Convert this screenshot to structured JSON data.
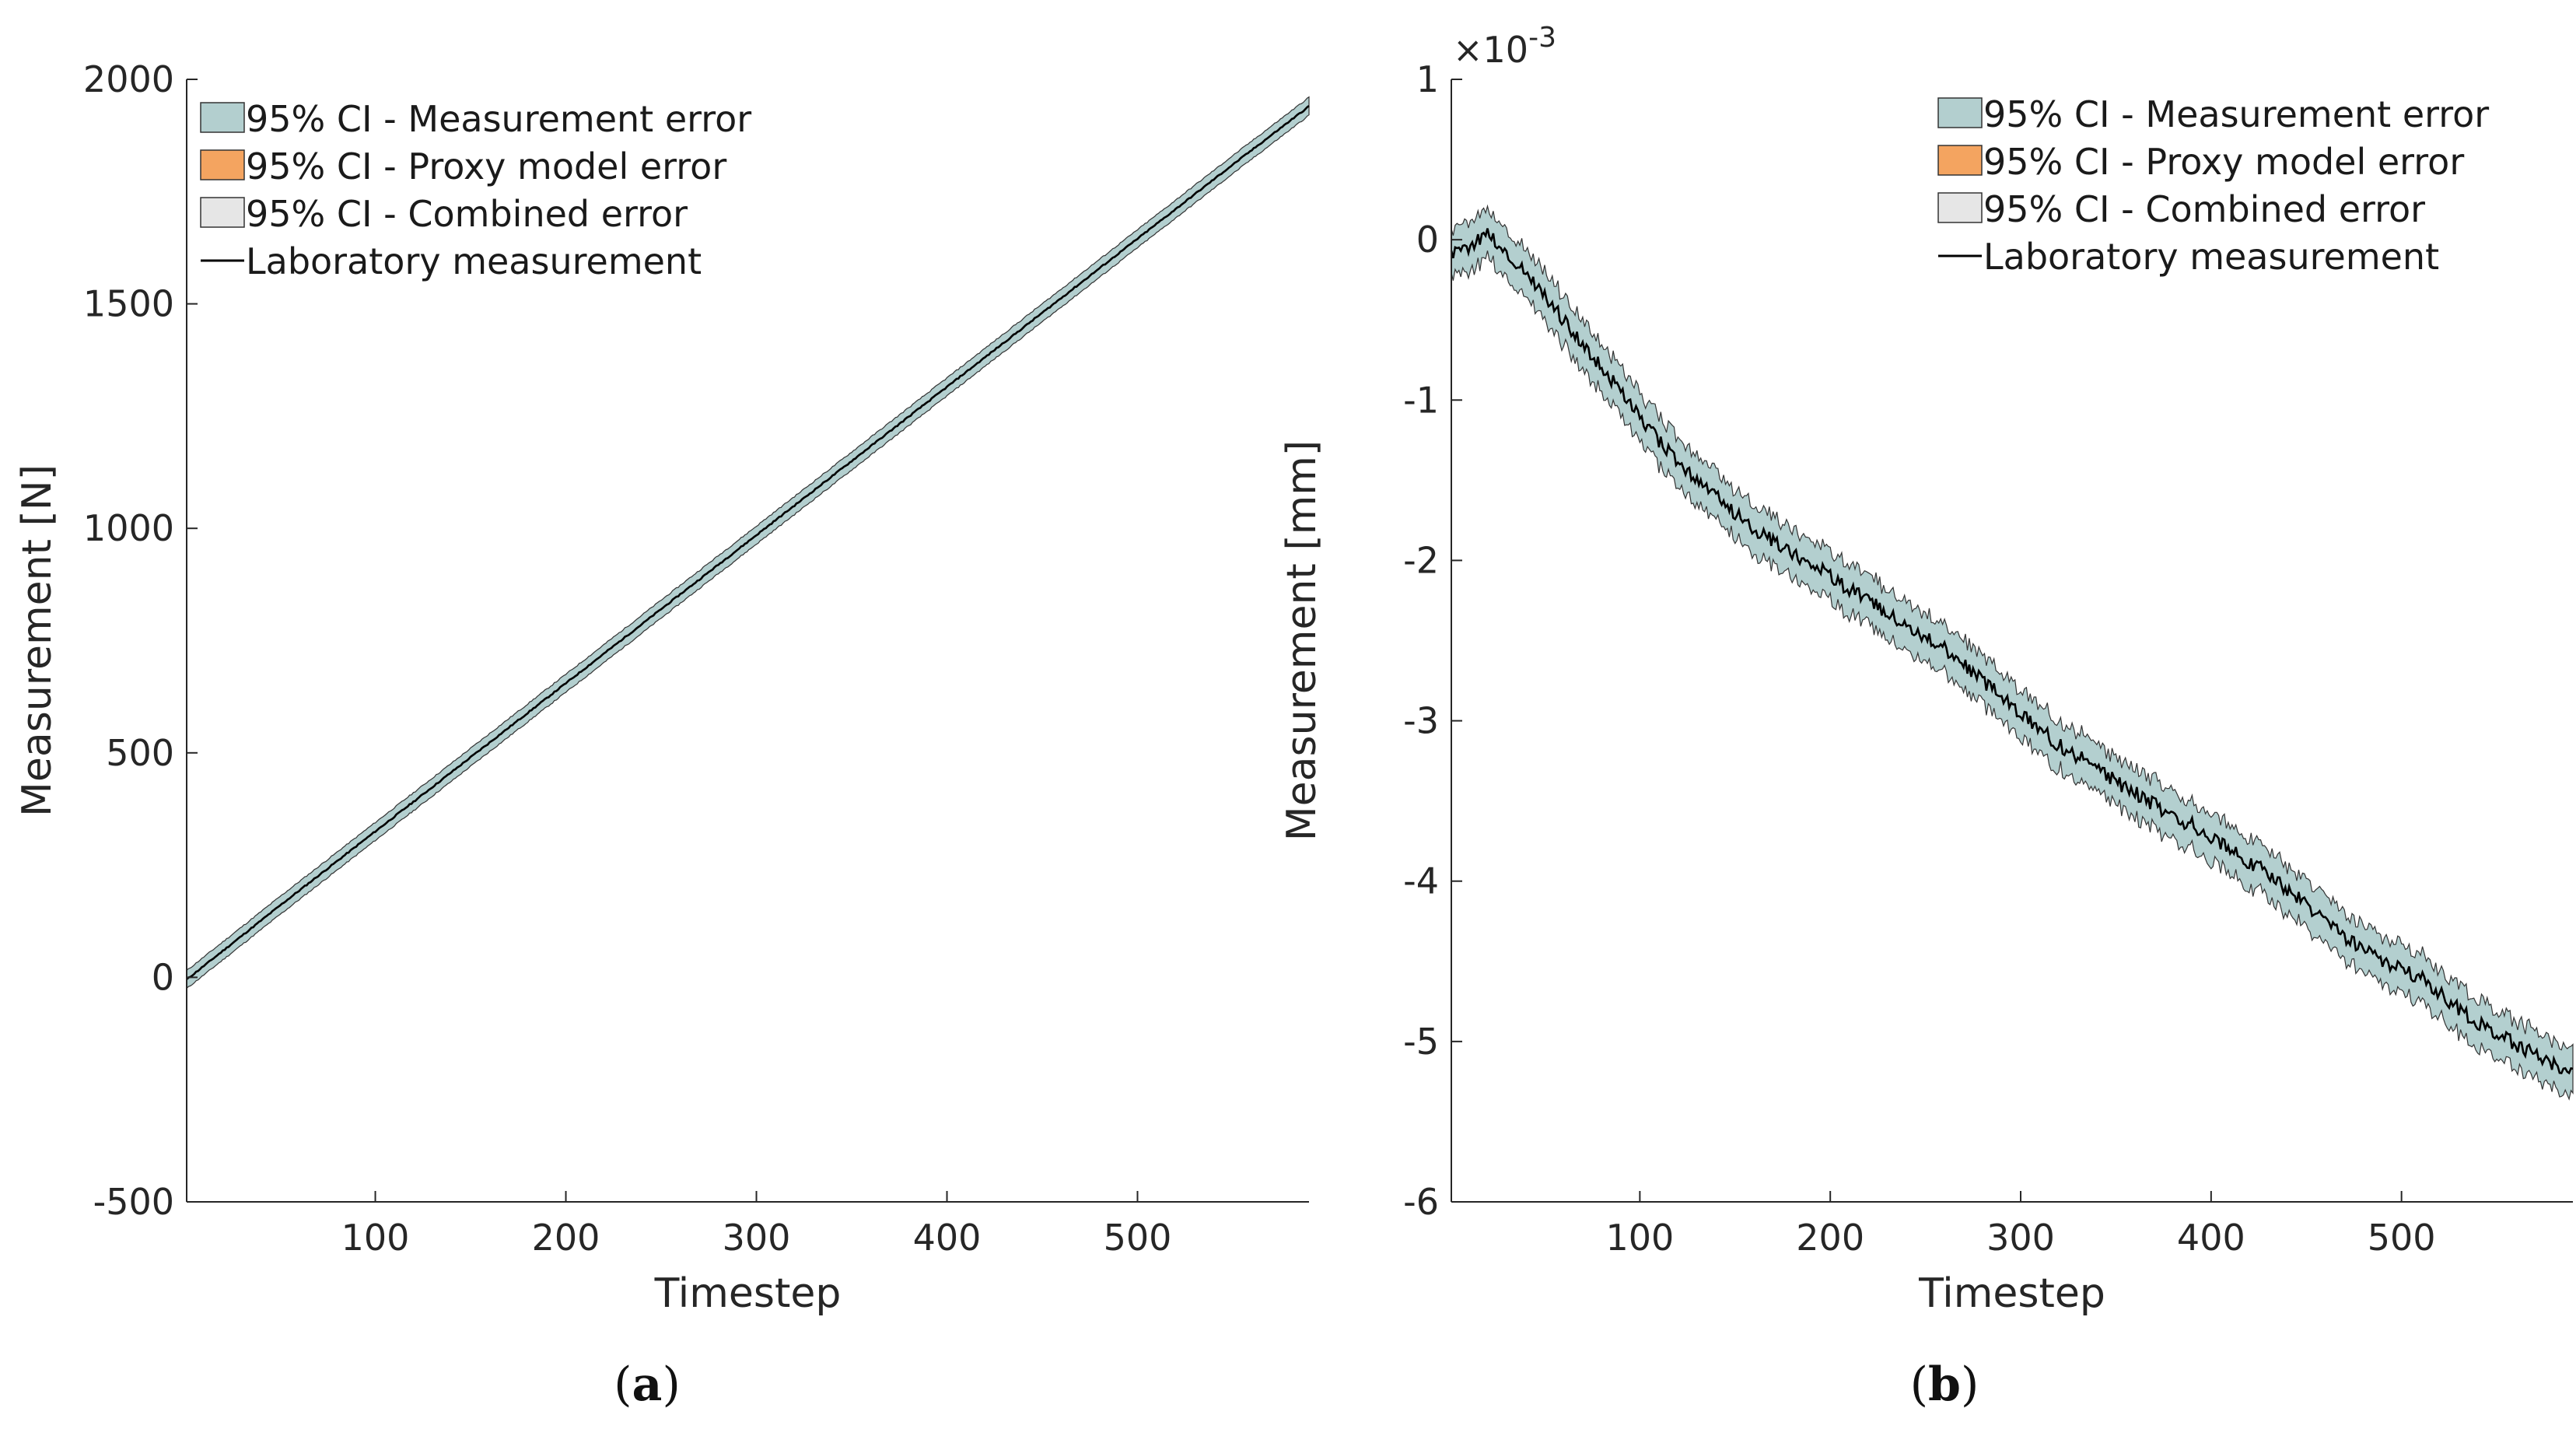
{
  "colors": {
    "measurement_error": "#b3cfcf",
    "proxy_model_error": "#f4a460",
    "combined_error": "#e6e6e6",
    "laboratory": "#000000",
    "axis": "#262626"
  },
  "legend_labels": [
    "95% CI - Measurement error",
    "95% CI - Proxy model error",
    "95% CI - Combined error",
    "Laboratory measurement"
  ],
  "chart_data": [
    {
      "type": "area",
      "panel_label": "a",
      "title": "",
      "xlabel": "Timestep",
      "ylabel": "Measurement [N]",
      "xlim": [
        1,
        590
      ],
      "ylim": [
        -500,
        2000
      ],
      "xticks": [
        100,
        200,
        300,
        400,
        500
      ],
      "xtick_labels": [
        "100",
        "200",
        "300",
        "400",
        "500"
      ],
      "yticks": [
        -500,
        0,
        500,
        1000,
        1500,
        2000
      ],
      "ytick_labels": [
        "-500",
        "0",
        "500",
        "1000",
        "1500",
        "2000"
      ],
      "exponent_label": "",
      "legend_position": "top-left",
      "series": [
        {
          "name": "Laboratory measurement",
          "x": [
            1,
            50,
            100,
            150,
            200,
            250,
            300,
            350,
            400,
            450,
            500,
            550,
            590
          ],
          "values": [
            -5,
            160,
            325,
            490,
            655,
            820,
            985,
            1150,
            1315,
            1480,
            1645,
            1810,
            1940
          ]
        },
        {
          "name": "95% CI - Measurement error",
          "x": [
            1,
            50,
            100,
            150,
            200,
            250,
            300,
            350,
            400,
            450,
            500,
            550,
            590
          ],
          "lower": [
            -25,
            140,
            305,
            470,
            635,
            800,
            965,
            1130,
            1295,
            1460,
            1625,
            1790,
            1920
          ],
          "upper": [
            15,
            180,
            345,
            510,
            675,
            840,
            1005,
            1170,
            1335,
            1500,
            1665,
            1830,
            1960
          ]
        }
      ]
    },
    {
      "type": "area",
      "panel_label": "b",
      "title": "",
      "xlabel": "Timestep",
      "ylabel": "Measurement [mm]",
      "xlim": [
        1,
        590
      ],
      "ylim": [
        -6,
        1
      ],
      "xticks": [
        100,
        200,
        300,
        400,
        500
      ],
      "xtick_labels": [
        "100",
        "200",
        "300",
        "400",
        "500"
      ],
      "yticks": [
        -6,
        -5,
        -4,
        -3,
        -2,
        -1,
        0,
        1
      ],
      "ytick_labels": [
        "-6",
        "-5",
        "-4",
        "-3",
        "-2",
        "-1",
        "0",
        "1"
      ],
      "exponent_label": "-3",
      "legend_position": "top-right",
      "series": [
        {
          "name": "Laboratory measurement",
          "x": [
            1,
            10,
            20,
            30,
            40,
            50,
            60,
            70,
            80,
            90,
            100,
            110,
            120,
            130,
            140,
            150,
            160,
            170,
            180,
            190,
            200,
            210,
            220,
            230,
            240,
            250,
            260,
            270,
            280,
            290,
            300,
            310,
            320,
            330,
            340,
            350,
            360,
            370,
            380,
            390,
            400,
            410,
            420,
            430,
            440,
            450,
            460,
            470,
            480,
            490,
            500,
            510,
            520,
            530,
            540,
            550,
            560,
            570,
            580,
            590
          ],
          "values": [
            -0.1,
            -0.05,
            0.05,
            -0.1,
            -0.2,
            -0.35,
            -0.5,
            -0.65,
            -0.8,
            -0.95,
            -1.1,
            -1.25,
            -1.4,
            -1.5,
            -1.6,
            -1.7,
            -1.8,
            -1.88,
            -1.95,
            -2.02,
            -2.1,
            -2.18,
            -2.25,
            -2.32,
            -2.4,
            -2.48,
            -2.55,
            -2.65,
            -2.75,
            -2.85,
            -2.95,
            -3.05,
            -3.15,
            -3.22,
            -3.3,
            -3.38,
            -3.45,
            -3.52,
            -3.6,
            -3.65,
            -3.72,
            -3.8,
            -3.88,
            -3.95,
            -4.05,
            -4.15,
            -4.25,
            -4.35,
            -4.42,
            -4.5,
            -4.55,
            -4.6,
            -4.7,
            -4.8,
            -4.88,
            -4.95,
            -5.02,
            -5.08,
            -5.14,
            -5.2
          ],
          "ci_halfwidth": 0.15
        }
      ]
    }
  ]
}
